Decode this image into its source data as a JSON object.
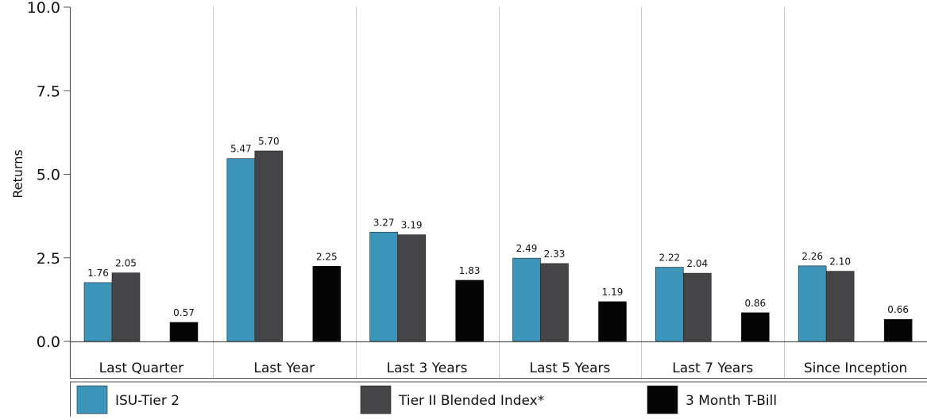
{
  "colors": {
    "isu_tier_2": "#3e95ba",
    "tier_ii_blended_index": "#454547",
    "three_month_tbill": "#050505",
    "grid": "#c8c8c8",
    "axis": "#555555"
  },
  "chart_data": {
    "type": "bar",
    "title": "",
    "xlabel": "",
    "ylabel": "Returns",
    "ylim": [
      0,
      10
    ],
    "yticks": [
      0,
      2.5,
      5,
      7.5,
      10
    ],
    "ytick_labels": [
      "0.0",
      "2.5",
      "5.0",
      "7.5",
      "10.0"
    ],
    "grid": "vertical separators between categories",
    "legend_placement": "bottom",
    "categories": [
      "Last Quarter",
      "Last Year",
      "Last 3 Years",
      "Last 5 Years",
      "Last 7 Years",
      "Since Inception"
    ],
    "series": [
      {
        "name": "ISU-Tier 2",
        "color": "#3e95ba",
        "values": [
          1.76,
          5.47,
          3.27,
          2.49,
          2.22,
          2.26
        ],
        "labels": [
          "1.76",
          "5.47",
          "3.27",
          "2.49",
          "2.22",
          "2.26"
        ]
      },
      {
        "name": "Tier II Blended Index*",
        "color": "#454547",
        "values": [
          2.05,
          5.7,
          3.19,
          2.33,
          2.04,
          2.1
        ],
        "labels": [
          "2.05",
          "5.70",
          "3.19",
          "2.33",
          "2.04",
          "2.10"
        ]
      },
      {
        "name": "3 Month T-Bill",
        "color": "#050505",
        "values": [
          0.57,
          2.25,
          1.83,
          1.19,
          0.86,
          0.66
        ],
        "labels": [
          "0.57",
          "2.25",
          "1.83",
          "1.19",
          "0.86",
          "0.66"
        ]
      }
    ]
  }
}
